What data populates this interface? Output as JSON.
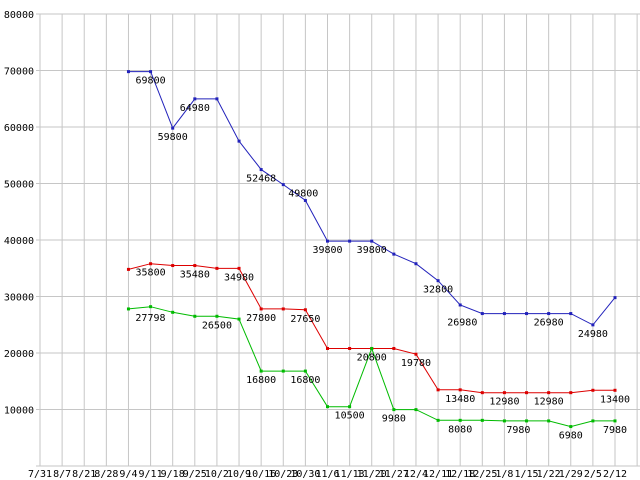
{
  "chart_data": {
    "type": "line",
    "title": "",
    "xlabel": "",
    "ylabel": "",
    "grid": true,
    "legend": "none",
    "background": "#ffffff",
    "grid_color": "#c6c6c6",
    "text_color": "#000000",
    "categories": [
      "7/31",
      "8/7",
      "8/21",
      "8/28",
      "9/4",
      "9/11",
      "9/18",
      "9/25",
      "10/2",
      "10/9",
      "10/16",
      "10/23",
      "10/30",
      "11/6",
      "11/13",
      "11/20",
      "11/27",
      "12/4",
      "12/11",
      "12/18",
      "12/25",
      "1/8",
      "1/15",
      "1/22",
      "1/29",
      "2/5",
      "2/12"
    ],
    "y_axis": {
      "min": 0,
      "max": 80000,
      "tick_step": 10000,
      "tick_labels": [
        "80000",
        "70000",
        "60000",
        "50000",
        "40000",
        "30000",
        "20000",
        "10000"
      ]
    },
    "series": [
      {
        "name": "price-series-blue",
        "color": "#2222bb",
        "values": [
          null,
          null,
          null,
          null,
          69800,
          69800,
          59800,
          64980,
          64980,
          57500,
          52468,
          49800,
          47000,
          39800,
          39800,
          39800,
          37500,
          35800,
          32800,
          28500,
          26980,
          26980,
          26980,
          26980,
          26980,
          24980,
          29800
        ]
      },
      {
        "name": "price-series-red",
        "color": "#dd0000",
        "values": [
          null,
          null,
          null,
          null,
          34800,
          35800,
          35480,
          35480,
          34980,
          34980,
          27800,
          27800,
          27650,
          20800,
          20800,
          20800,
          20800,
          19780,
          13480,
          13480,
          12980,
          12980,
          12980,
          12980,
          12980,
          13400,
          13400
        ]
      },
      {
        "name": "price-series-green",
        "color": "#00bb00",
        "values": [
          null,
          null,
          null,
          null,
          27798,
          28200,
          27200,
          26500,
          26500,
          26000,
          16800,
          16800,
          16800,
          10500,
          10500,
          20800,
          9980,
          9980,
          8080,
          8080,
          8080,
          7980,
          7980,
          7980,
          6980,
          7980,
          7980
        ]
      }
    ],
    "annotations": [
      {
        "s": 0,
        "i": 5,
        "t": "69800"
      },
      {
        "s": 0,
        "i": 6,
        "t": "59800"
      },
      {
        "s": 0,
        "i": 7,
        "t": "64980"
      },
      {
        "s": 0,
        "i": 10,
        "t": "52468"
      },
      {
        "s": 0,
        "i": 11,
        "t": "49800",
        "dx": 20
      },
      {
        "s": 0,
        "i": 13,
        "t": "39800"
      },
      {
        "s": 0,
        "i": 15,
        "t": "39800"
      },
      {
        "s": 0,
        "i": 18,
        "t": "32800"
      },
      {
        "s": 0,
        "i": 20,
        "t": "26980",
        "dx": -20
      },
      {
        "s": 0,
        "i": 23,
        "t": "26980"
      },
      {
        "s": 0,
        "i": 25,
        "t": "24980"
      },
      {
        "s": 1,
        "i": 5,
        "t": "35800"
      },
      {
        "s": 1,
        "i": 7,
        "t": "35480"
      },
      {
        "s": 1,
        "i": 9,
        "t": "34980"
      },
      {
        "s": 1,
        "i": 10,
        "t": "27800"
      },
      {
        "s": 1,
        "i": 12,
        "t": "27650"
      },
      {
        "s": 1,
        "i": 15,
        "t": "20800"
      },
      {
        "s": 1,
        "i": 17,
        "t": "19780"
      },
      {
        "s": 1,
        "i": 19,
        "t": "13480"
      },
      {
        "s": 1,
        "i": 21,
        "t": "12980"
      },
      {
        "s": 1,
        "i": 23,
        "t": "12980"
      },
      {
        "s": 1,
        "i": 26,
        "t": "13400"
      },
      {
        "s": 2,
        "i": 4,
        "t": "27798",
        "dx": 22
      },
      {
        "s": 2,
        "i": 8,
        "t": "26500"
      },
      {
        "s": 2,
        "i": 10,
        "t": "16800"
      },
      {
        "s": 2,
        "i": 12,
        "t": "16800"
      },
      {
        "s": 2,
        "i": 14,
        "t": "10500"
      },
      {
        "s": 2,
        "i": 16,
        "t": "9980"
      },
      {
        "s": 2,
        "i": 19,
        "t": "8080"
      },
      {
        "s": 2,
        "i": 21,
        "t": "7980",
        "dx": 14
      },
      {
        "s": 2,
        "i": 24,
        "t": "6980"
      },
      {
        "s": 2,
        "i": 26,
        "t": "7980"
      }
    ]
  }
}
